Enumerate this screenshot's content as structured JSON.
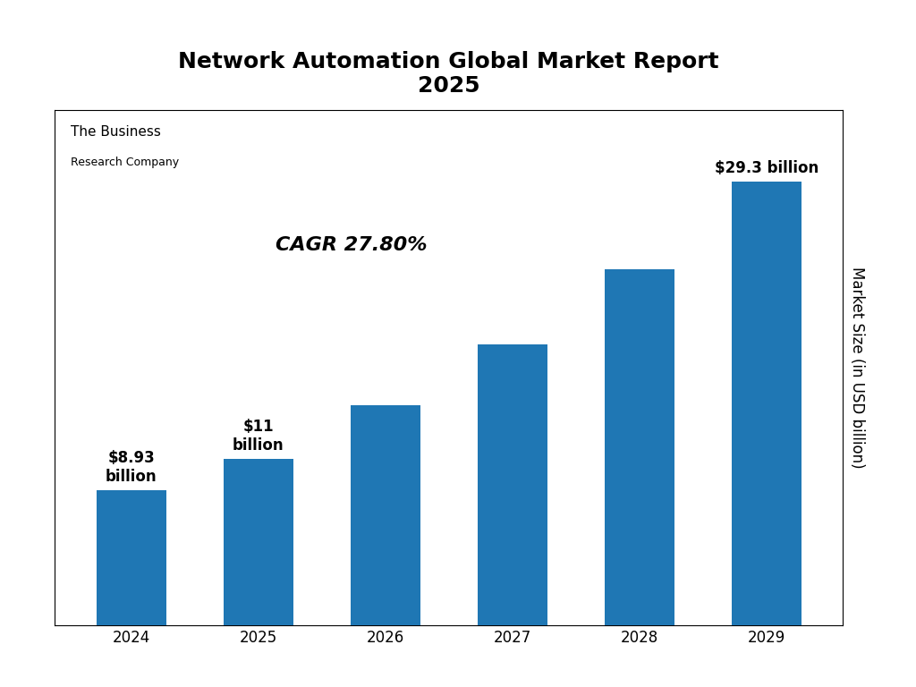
{
  "chart_data": {
    "type": "bar",
    "title": "Network Automation Global Market Report\n2025",
    "categories": [
      "2024",
      "2025",
      "2026",
      "2027",
      "2028",
      "2029"
    ],
    "values": [
      8.93,
      11.0,
      14.5,
      18.5,
      23.5,
      29.3
    ],
    "data_labels": true,
    "value_labels": [
      "$8.93\nbillion",
      "$11\nbillion",
      null,
      null,
      null,
      "$29.3 billion"
    ],
    "y_label": "Market Size (in USD billion)",
    "ylim": [
      0,
      34
    ],
    "tick_labels": "x",
    "annotations": [
      "CAGR 27.80%",
      "The Business",
      "Research Company"
    ]
  }
}
